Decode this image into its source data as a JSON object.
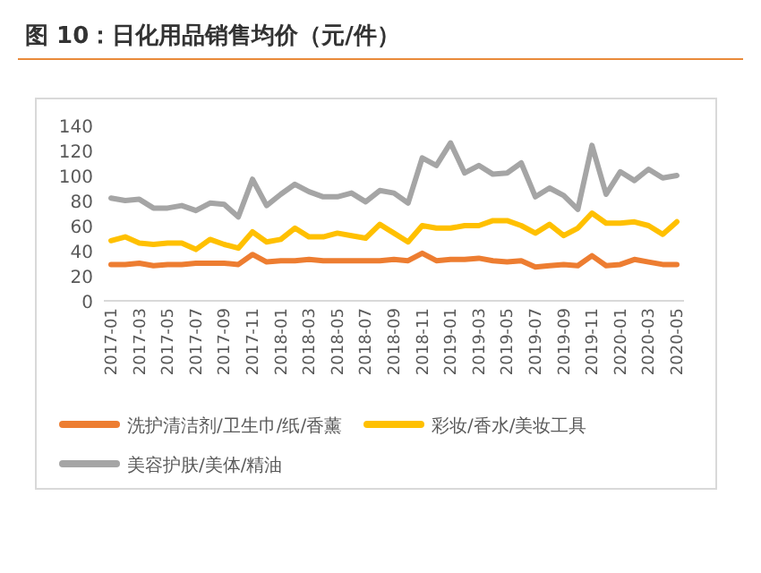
{
  "chart_data": {
    "type": "line",
    "title": "图 10：日化用品销售均价（元/件）",
    "categories": [
      "2017-01",
      null,
      "2017-03",
      null,
      "2017-05",
      null,
      "2017-07",
      null,
      "2017-09",
      null,
      "2017-11",
      null,
      "2018-01",
      null,
      "2018-03",
      null,
      "2018-05",
      null,
      "2018-07",
      null,
      "2018-09",
      null,
      "2018-11",
      null,
      "2019-01",
      null,
      "2019-03",
      null,
      "2019-05",
      null,
      "2019-07",
      null,
      "2019-09",
      null,
      "2019-11",
      null,
      "2020-01",
      null,
      "2020-03",
      null,
      "2020-05"
    ],
    "series": [
      {
        "name": "洗护清洁剂/卫生巾/纸/香薰",
        "color": "#ed7d31",
        "values": [
          29,
          29,
          30,
          28,
          29,
          29,
          30,
          30,
          30,
          29,
          37,
          31,
          32,
          32,
          33,
          32,
          32,
          32,
          32,
          32,
          33,
          32,
          38,
          32,
          33,
          33,
          34,
          32,
          31,
          32,
          27,
          28,
          29,
          28,
          36,
          28,
          29,
          33,
          31,
          29,
          29
        ]
      },
      {
        "name": "彩妆/香水/美妆工具",
        "color": "#ffc000",
        "values": [
          48,
          51,
          46,
          45,
          46,
          46,
          41,
          49,
          45,
          42,
          55,
          47,
          49,
          58,
          51,
          51,
          54,
          52,
          50,
          61,
          54,
          47,
          60,
          58,
          58,
          60,
          60,
          64,
          64,
          60,
          54,
          61,
          52,
          58,
          70,
          62,
          62,
          63,
          60,
          53,
          63
        ]
      },
      {
        "name": "美容护肤/美体/精油",
        "color": "#a5a5a5",
        "values": [
          82,
          80,
          81,
          74,
          74,
          76,
          72,
          78,
          77,
          67,
          97,
          76,
          85,
          93,
          87,
          83,
          83,
          86,
          79,
          88,
          86,
          78,
          114,
          108,
          126,
          102,
          108,
          101,
          102,
          110,
          83,
          90,
          84,
          73,
          124,
          85,
          103,
          96,
          105,
          98,
          100
        ]
      }
    ],
    "ylim": [
      0,
      140
    ],
    "yticks": [
      0,
      20,
      40,
      60,
      80,
      100,
      120,
      140
    ],
    "grid": false,
    "legend": "bottom",
    "line_style": "solid",
    "marker": "none"
  }
}
